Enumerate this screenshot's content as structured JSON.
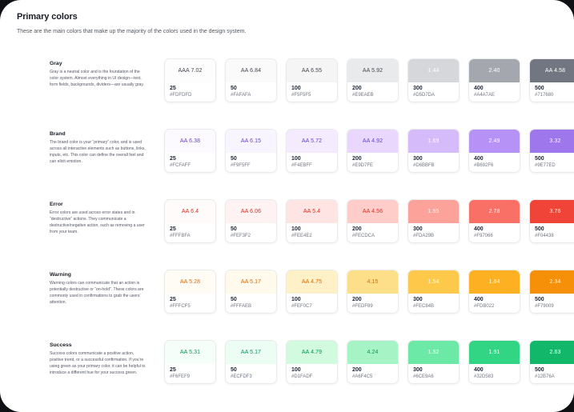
{
  "page": {
    "title": "Primary colors",
    "subtitle": "These are the main colors that make up the majority of the colors used in the design system."
  },
  "colors": {
    "panel_bg": "#FFFFFF",
    "outside_bg": "#101114",
    "card_border": "#E9EAEB",
    "title_text": "#181D27",
    "body_text": "#535862",
    "hex_text": "#717680",
    "light_label_text": "#FFFFFF"
  },
  "groups": [
    {
      "name": "Gray",
      "description": "Gray is a neutral color and is the foundation of the color system. Almost everything in UI design—text, form fields, backgrounds, dividers—are usually gray.",
      "label_color": "#414651",
      "swatches": [
        {
          "scale": "25",
          "hex": "#FDFDFD",
          "contrast": "AAA 7.02",
          "dark_text": true
        },
        {
          "scale": "50",
          "hex": "#FAFAFA",
          "contrast": "AA 6.84",
          "dark_text": true
        },
        {
          "scale": "100",
          "hex": "#F5F5F5",
          "contrast": "AA 6.55",
          "dark_text": true
        },
        {
          "scale": "200",
          "hex": "#E9EAEB",
          "contrast": "AA 5.92",
          "dark_text": true
        },
        {
          "scale": "300",
          "hex": "#D5D7DA",
          "contrast": "1.44",
          "dark_text": false
        },
        {
          "scale": "400",
          "hex": "#A4A7AE",
          "contrast": "2.40",
          "dark_text": false
        },
        {
          "scale": "500",
          "hex": "#717680",
          "contrast": "AA 4.58",
          "dark_text": false
        }
      ]
    },
    {
      "name": "Brand",
      "description": "The brand color is your “primary” color, and is used across all interactive elements such as buttons, links, inputs, etc. This color can define the overall feel and can elicit emotion.",
      "label_color": "#6941C6",
      "swatches": [
        {
          "scale": "25",
          "hex": "#FCFAFF",
          "contrast": "AA 6.38",
          "dark_text": true
        },
        {
          "scale": "50",
          "hex": "#F9F5FF",
          "contrast": "AA 6.15",
          "dark_text": true
        },
        {
          "scale": "100",
          "hex": "#F4EBFF",
          "contrast": "AA 5.72",
          "dark_text": true
        },
        {
          "scale": "200",
          "hex": "#E9D7FE",
          "contrast": "AA 4.92",
          "dark_text": true
        },
        {
          "scale": "300",
          "hex": "#D6BBFB",
          "contrast": "1.69",
          "dark_text": false
        },
        {
          "scale": "400",
          "hex": "#B692F6",
          "contrast": "2.49",
          "dark_text": false
        },
        {
          "scale": "500",
          "hex": "#9E77ED",
          "contrast": "3.32",
          "dark_text": false
        }
      ]
    },
    {
      "name": "Error",
      "description": "Error colors are used across error states and in “destructive” actions. They communicate a destructive/negative action, such as removing a user from your team.",
      "label_color": "#D92D20",
      "swatches": [
        {
          "scale": "25",
          "hex": "#FFFBFA",
          "contrast": "AA 6.4",
          "dark_text": true
        },
        {
          "scale": "50",
          "hex": "#FEF3F2",
          "contrast": "AA 6.06",
          "dark_text": true
        },
        {
          "scale": "100",
          "hex": "#FEE4E2",
          "contrast": "AA 5.4",
          "dark_text": true
        },
        {
          "scale": "200",
          "hex": "#FECDCA",
          "contrast": "AA 4.56",
          "dark_text": true
        },
        {
          "scale": "300",
          "hex": "#FDA29B",
          "contrast": "1.95",
          "dark_text": false
        },
        {
          "scale": "400",
          "hex": "#F97066",
          "contrast": "2.78",
          "dark_text": false
        },
        {
          "scale": "500",
          "hex": "#F04438",
          "contrast": "3.76",
          "dark_text": false
        }
      ]
    },
    {
      "name": "Warning",
      "description": "Warning colors can communicate that an action is potentially destructive or “on-hold”. These colors are commonly used in confirmations to grab the users’ attention.",
      "label_color": "#DC6803",
      "swatches": [
        {
          "scale": "25",
          "hex": "#FFFCF5",
          "contrast": "AA 5.28",
          "dark_text": true
        },
        {
          "scale": "50",
          "hex": "#FFFAEB",
          "contrast": "AA 5.17",
          "dark_text": true
        },
        {
          "scale": "100",
          "hex": "#FEF0C7",
          "contrast": "AA 4.75",
          "dark_text": true
        },
        {
          "scale": "200",
          "hex": "#FEDF89",
          "contrast": "4.15",
          "dark_text": true
        },
        {
          "scale": "300",
          "hex": "#FEC84B",
          "contrast": "1.54",
          "dark_text": false
        },
        {
          "scale": "400",
          "hex": "#FDB022",
          "contrast": "1.84",
          "dark_text": false
        },
        {
          "scale": "500",
          "hex": "#F79009",
          "contrast": "2.34",
          "dark_text": false
        }
      ]
    },
    {
      "name": "Success",
      "description": "Success colors communicate a positive action, positive trend, or a successful confirmation. If you’re using green as your primary color, it can be helpful to introduce a different hue for your success green.",
      "label_color": "#079455",
      "swatches": [
        {
          "scale": "25",
          "hex": "#F6FEF9",
          "contrast": "AA 5.31",
          "dark_text": true
        },
        {
          "scale": "50",
          "hex": "#ECFDF3",
          "contrast": "AA 5.17",
          "dark_text": true
        },
        {
          "scale": "100",
          "hex": "#D1FADF",
          "contrast": "AA 4.79",
          "dark_text": true
        },
        {
          "scale": "200",
          "hex": "#A6F4C5",
          "contrast": "4.24",
          "dark_text": true
        },
        {
          "scale": "300",
          "hex": "#6CE9A6",
          "contrast": "1.52",
          "dark_text": false
        },
        {
          "scale": "400",
          "hex": "#32D583",
          "contrast": "1.91",
          "dark_text": false
        },
        {
          "scale": "500",
          "hex": "#12B76A",
          "contrast": "2.63",
          "dark_text": false
        }
      ]
    }
  ]
}
